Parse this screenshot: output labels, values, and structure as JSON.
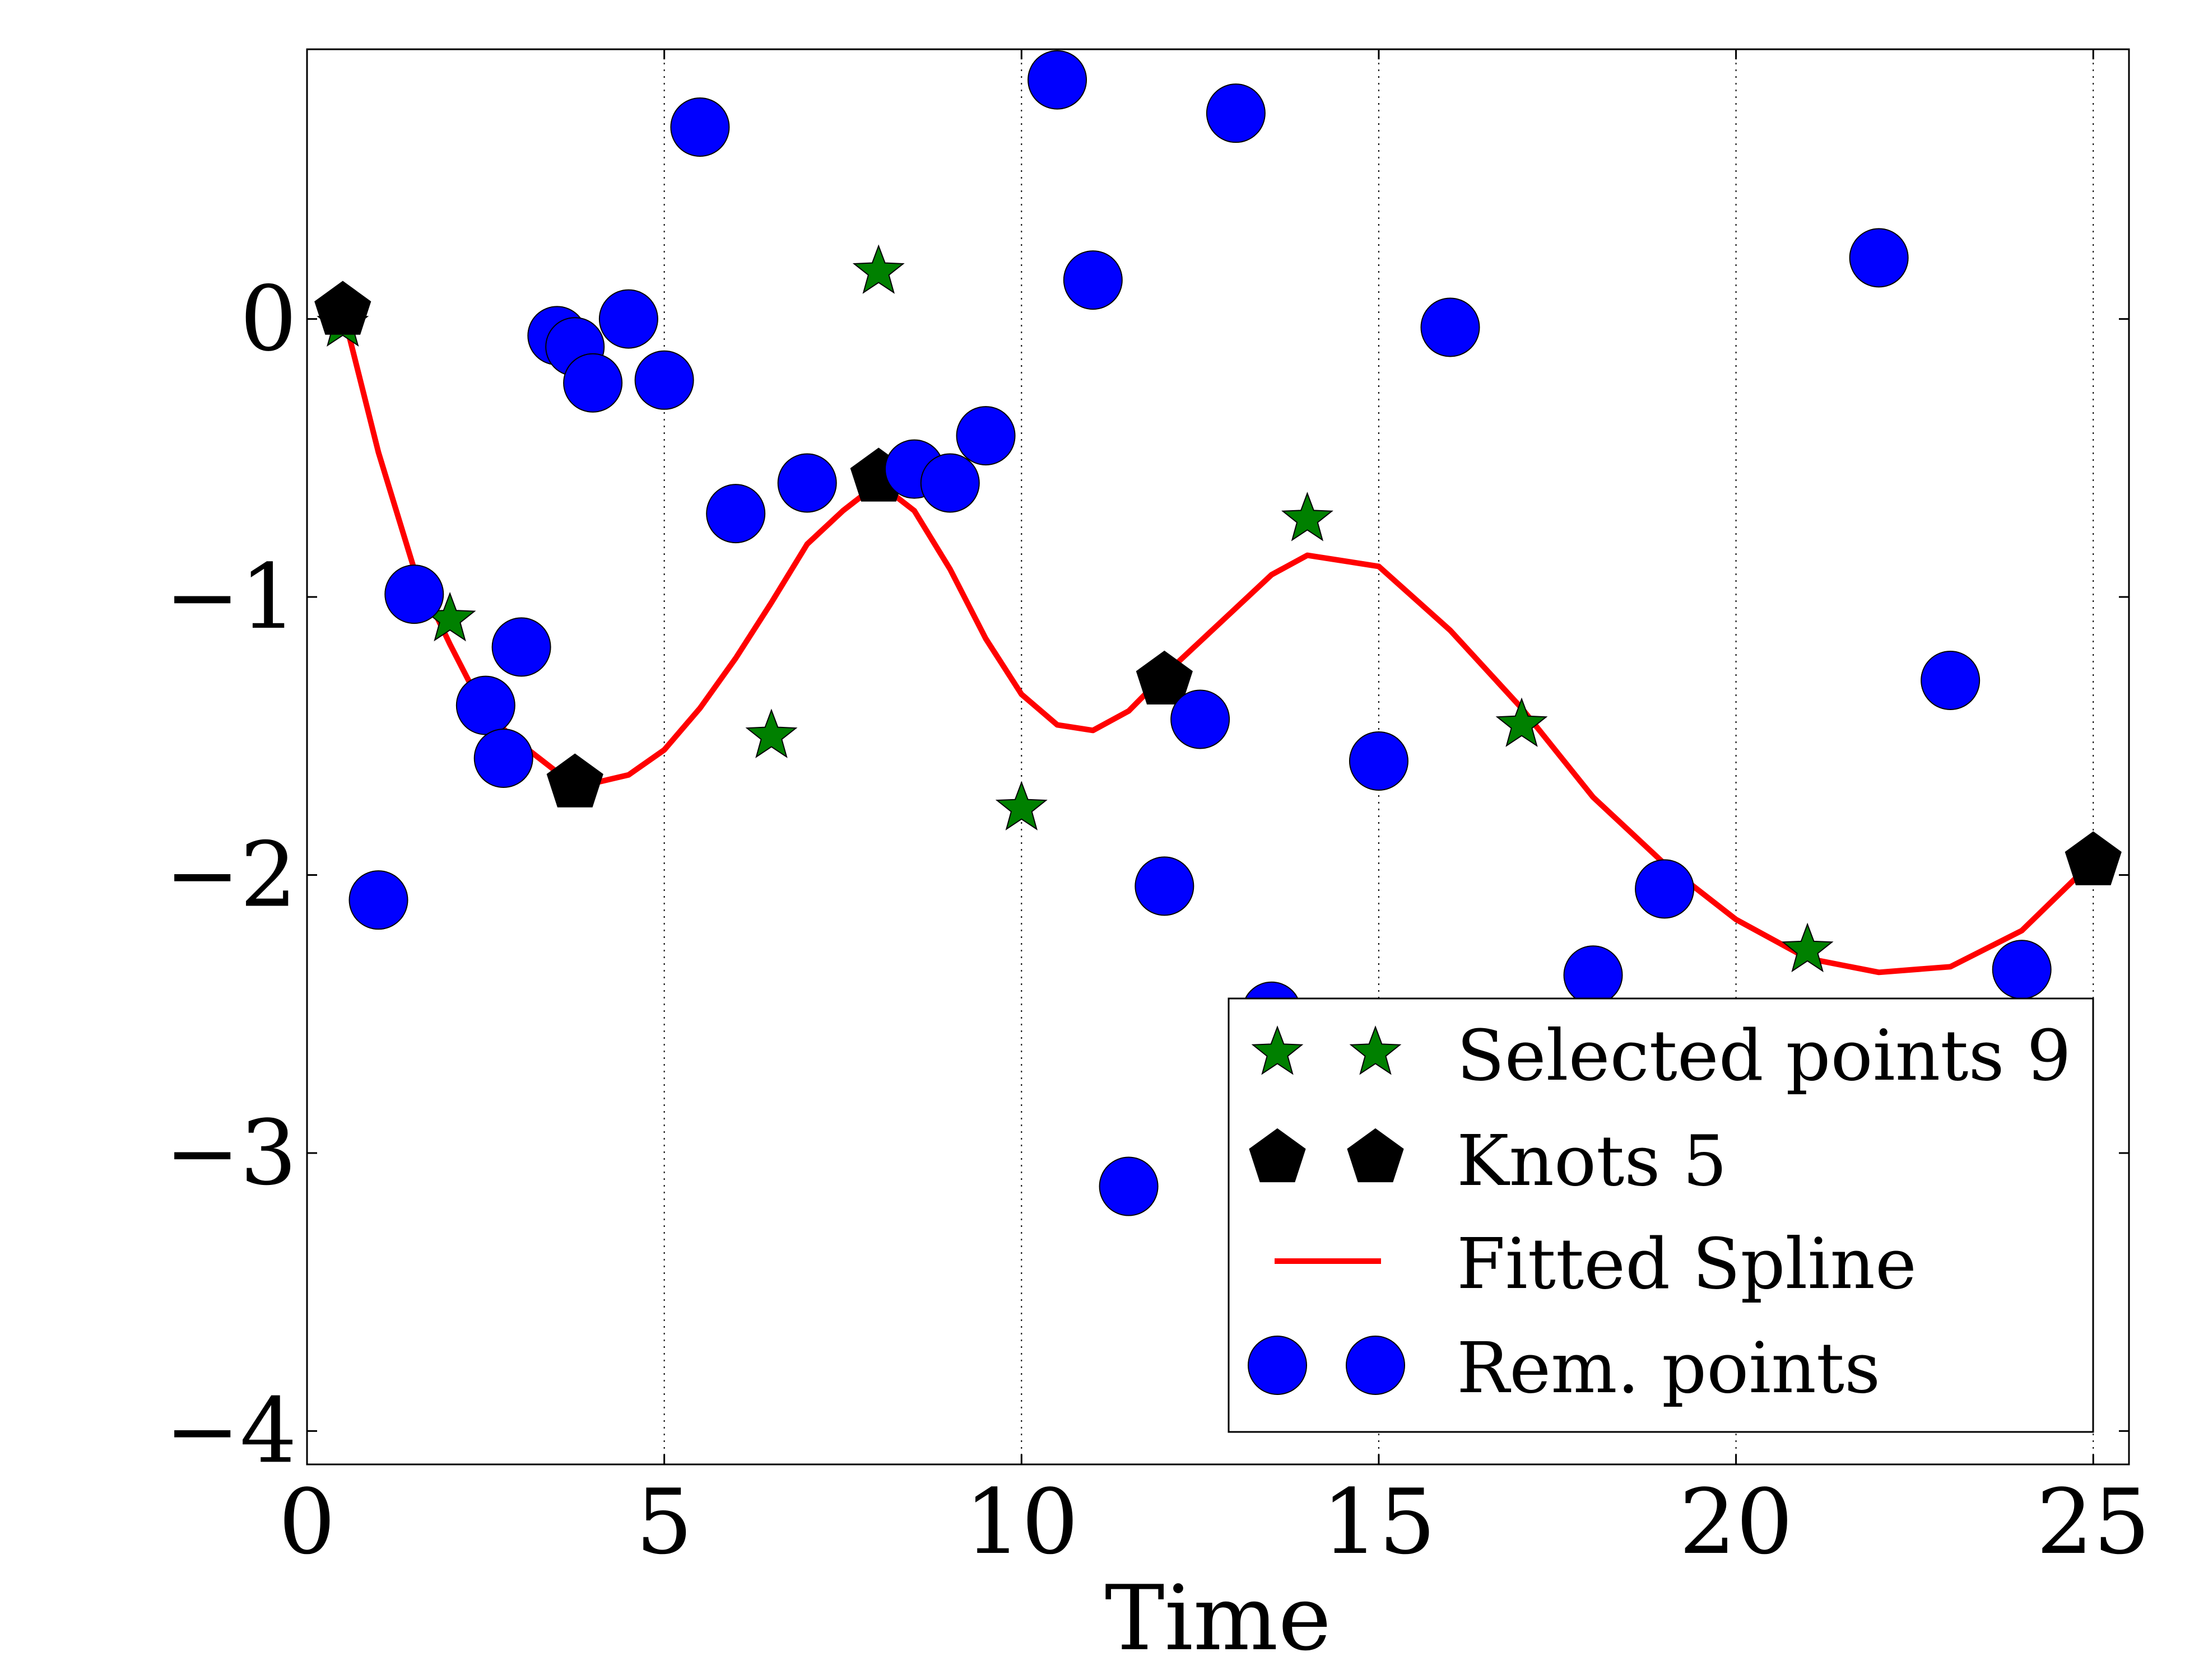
{
  "chart_data": {
    "type": "scatter",
    "title": "",
    "xlabel": "Time",
    "ylabel": "",
    "xlim": [
      0,
      25.5
    ],
    "ylim": [
      -4.12,
      0.97
    ],
    "xticks": [
      0,
      5,
      10,
      15,
      20,
      25
    ],
    "yticks": [
      0,
      -1,
      -2,
      -3,
      -4
    ],
    "xtick_labels": [
      "0",
      "5",
      "10",
      "15",
      "20",
      "25"
    ],
    "ytick_labels": [
      "0",
      "−1",
      "−2",
      "−3",
      "−4"
    ],
    "grid": "vertical dotted lines at x ticks",
    "legend_position": "lower-right",
    "series": [
      {
        "name": "Selected points 9",
        "marker": "star",
        "color": "#008000",
        "x": [
          0.5,
          2.0,
          6.5,
          8.0,
          10.0,
          14.0,
          17.0,
          21.0
        ],
        "y": [
          -0.02,
          -1.08,
          -1.5,
          0.17,
          -1.76,
          -0.72,
          -1.46,
          -2.27
        ]
      },
      {
        "name": "Knots 5",
        "marker": "pentagon",
        "color": "#000000",
        "x": [
          0.5,
          3.75,
          8.0,
          12.0,
          25.0
        ],
        "y": [
          0.03,
          -1.67,
          -0.57,
          -1.3,
          -1.95
        ]
      },
      {
        "name": "Fitted Spline",
        "marker": "line",
        "color": "#ff0000",
        "x": [
          0.5,
          1.0,
          1.5,
          2.0,
          2.5,
          3.0,
          3.5,
          3.75,
          4.0,
          4.5,
          5.0,
          5.5,
          6.0,
          6.5,
          7.0,
          7.5,
          8.0,
          8.5,
          9.0,
          9.5,
          10.0,
          10.5,
          11.0,
          11.5,
          12.0,
          12.5,
          13.0,
          13.5,
          14.0,
          15.0,
          16.0,
          17.0,
          18.0,
          19.0,
          20.0,
          21.0,
          22.0,
          23.0,
          24.0,
          25.0
        ],
        "y": [
          0.03,
          -0.48,
          -0.9,
          -1.17,
          -1.42,
          -1.53,
          -1.63,
          -1.67,
          -1.67,
          -1.64,
          -1.55,
          -1.4,
          -1.22,
          -1.02,
          -0.81,
          -0.69,
          -0.59,
          -0.69,
          -0.9,
          -1.15,
          -1.35,
          -1.46,
          -1.48,
          -1.41,
          -1.28,
          -1.16,
          -1.04,
          -0.92,
          -0.85,
          -0.89,
          -1.12,
          -1.4,
          -1.72,
          -1.96,
          -2.16,
          -2.3,
          -2.35,
          -2.33,
          -2.2,
          -1.95
        ]
      },
      {
        "name": "Rem. points",
        "marker": "circle",
        "color": "#0000ff",
        "x": [
          1.0,
          1.5,
          2.5,
          2.75,
          3.0,
          3.5,
          3.75,
          4.0,
          4.5,
          5.0,
          5.5,
          6.0,
          7.0,
          8.5,
          9.0,
          9.5,
          10.5,
          11.0,
          11.5,
          12.0,
          12.5,
          13.0,
          13.5,
          15.0,
          16.0,
          18.0,
          19.0,
          22.0,
          23.0,
          24.0
        ],
        "y": [
          -2.09,
          -0.99,
          -1.39,
          -1.58,
          -1.18,
          -0.06,
          -0.1,
          -0.23,
          0.0,
          -0.22,
          0.69,
          -0.7,
          -0.59,
          -0.54,
          -0.59,
          -0.42,
          0.86,
          0.14,
          -3.12,
          -2.04,
          -1.44,
          0.74,
          -2.49,
          -1.59,
          -0.03,
          -2.36,
          -2.05,
          0.22,
          -1.3,
          -2.34
        ]
      }
    ]
  }
}
